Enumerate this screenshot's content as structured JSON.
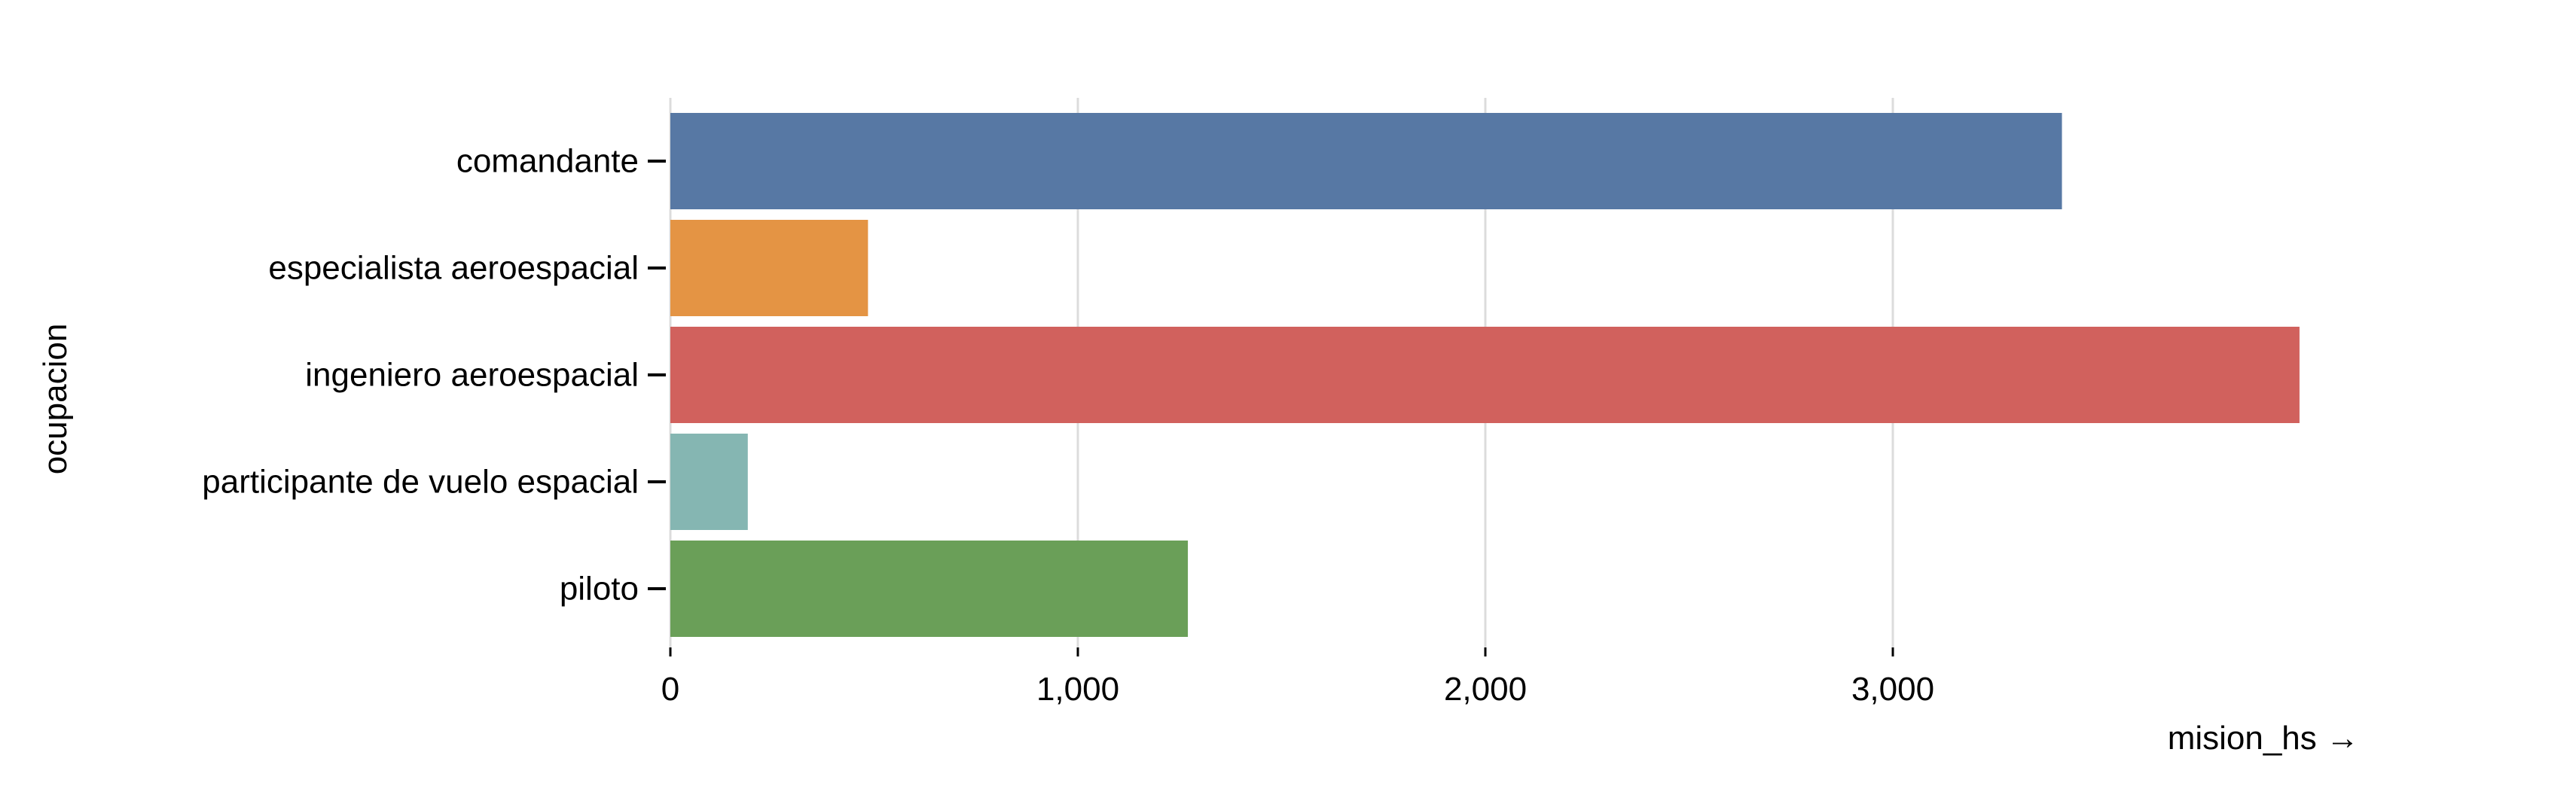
{
  "chart_data": {
    "type": "bar",
    "orientation": "horizontal",
    "title": "",
    "xlabel": "mision_hs →",
    "ylabel": "ocupacion",
    "xlim": [
      0,
      4000
    ],
    "x_ticks": [
      {
        "value": 0,
        "label": "0"
      },
      {
        "value": 1000,
        "label": "1,000"
      },
      {
        "value": 2000,
        "label": "2,000"
      },
      {
        "value": 3000,
        "label": "3,000"
      }
    ],
    "grid": "vertical",
    "legend": "none",
    "categories": [
      "comandante",
      "especialista aeroespacial",
      "ingeniero aeroespacial",
      "participante de vuelo espacial",
      "piloto"
    ],
    "values": [
      3415,
      485,
      3998,
      190,
      1270
    ],
    "colors": [
      "#5778a4",
      "#e49444",
      "#d1615d",
      "#85b6b2",
      "#6a9f58"
    ]
  }
}
